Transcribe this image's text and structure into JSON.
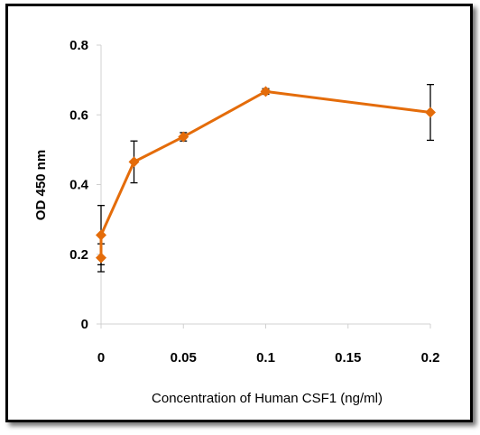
{
  "chart_data": {
    "type": "line",
    "title": "",
    "xlabel": "Concentration of Human CSF1 (ng/ml)",
    "ylabel": "OD  450 nm",
    "xlim": [
      0,
      0.2
    ],
    "ylim": [
      0,
      0.8
    ],
    "xticks": [
      "0",
      "0.05",
      "0.1",
      "0.15",
      "0.2"
    ],
    "xtick_values": [
      0,
      0.05,
      0.1,
      0.15,
      0.2
    ],
    "yticks": [
      "0",
      "0.2",
      "0.4",
      "0.6",
      "0.8"
    ],
    "ytick_values": [
      0,
      0.2,
      0.4,
      0.6,
      0.8
    ],
    "grid": false,
    "legend": "none",
    "color": "#E46C0A",
    "marker": "diamond",
    "series": [
      {
        "x": [
          0,
          0,
          0.02,
          0.05,
          0.1,
          0.2
        ],
        "y": [
          0.19,
          0.255,
          0.465,
          0.537,
          0.667,
          0.607
        ],
        "error": [
          0.04,
          0.085,
          0.06,
          0.012,
          0.008,
          0.08
        ]
      }
    ]
  }
}
